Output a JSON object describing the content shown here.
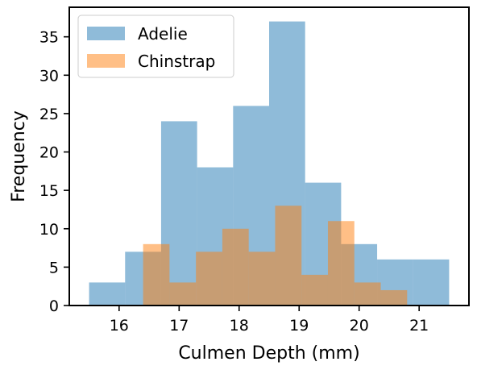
{
  "chart_data": {
    "type": "histogram",
    "title": "",
    "xlabel": "Culmen Depth (mm)",
    "ylabel": "Frequency",
    "xlim": [
      15.17,
      21.83
    ],
    "ylim": [
      0,
      38.85
    ],
    "xticks": [
      16,
      17,
      18,
      19,
      20,
      21
    ],
    "yticks": [
      0,
      5,
      10,
      15,
      20,
      25,
      30,
      35
    ],
    "grid": false,
    "legend_position": "top-left",
    "series": [
      {
        "name": "Adelie",
        "color": "#1f77b4",
        "alpha": 0.5,
        "bin_edges": [
          15.5,
          16.1,
          16.7,
          17.3,
          17.9,
          18.5,
          19.1,
          19.7,
          20.3,
          20.9,
          21.5
        ],
        "counts": [
          3,
          7,
          24,
          18,
          26,
          37,
          16,
          8,
          6,
          6
        ]
      },
      {
        "name": "Chinstrap",
        "color": "#ff7f0e",
        "alpha": 0.5,
        "bin_edges": [
          16.4,
          16.84,
          17.28,
          17.72,
          18.16,
          18.6,
          19.04,
          19.48,
          19.92,
          20.36,
          20.8
        ],
        "counts": [
          8,
          3,
          7,
          10,
          7,
          13,
          4,
          11,
          3,
          2
        ]
      }
    ]
  }
}
